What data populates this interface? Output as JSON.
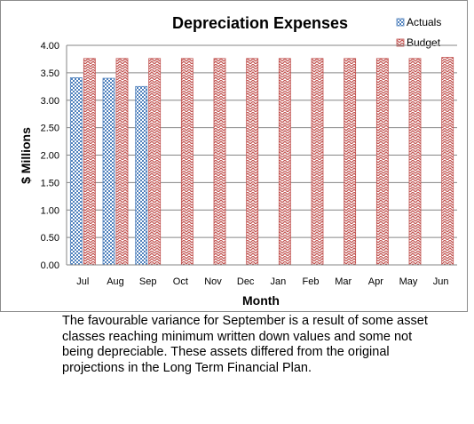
{
  "chart_data": {
    "type": "bar",
    "title": "Depreciation Expenses",
    "xlabel": "Month",
    "ylabel": "$ Millions",
    "ylim": [
      0,
      4
    ],
    "yticks": [
      "0.00",
      "0.50",
      "1.00",
      "1.50",
      "2.00",
      "2.50",
      "3.00",
      "3.50",
      "4.00"
    ],
    "categories": [
      "Jul",
      "Aug",
      "Sep",
      "Oct",
      "Nov",
      "Dec",
      "Jan",
      "Feb",
      "Mar",
      "Apr",
      "May",
      "Jun"
    ],
    "series": [
      {
        "name": "Actuals",
        "color": "#4f81bd",
        "pattern": "checkerboard",
        "values": [
          3.41,
          3.4,
          3.25,
          null,
          null,
          null,
          null,
          null,
          null,
          null,
          null,
          null
        ]
      },
      {
        "name": "Budget",
        "color": "#c0504d",
        "pattern": "zigzag",
        "values": [
          3.76,
          3.76,
          3.76,
          3.76,
          3.76,
          3.76,
          3.76,
          3.76,
          3.76,
          3.76,
          3.76,
          3.78
        ]
      }
    ],
    "grid": true,
    "legend": "top-right"
  },
  "caption": "The favourable variance for September is a result of some asset classes reaching minimum written down values and some not being depreciable. These assets differed from the original projections in the Long Term Financial Plan."
}
